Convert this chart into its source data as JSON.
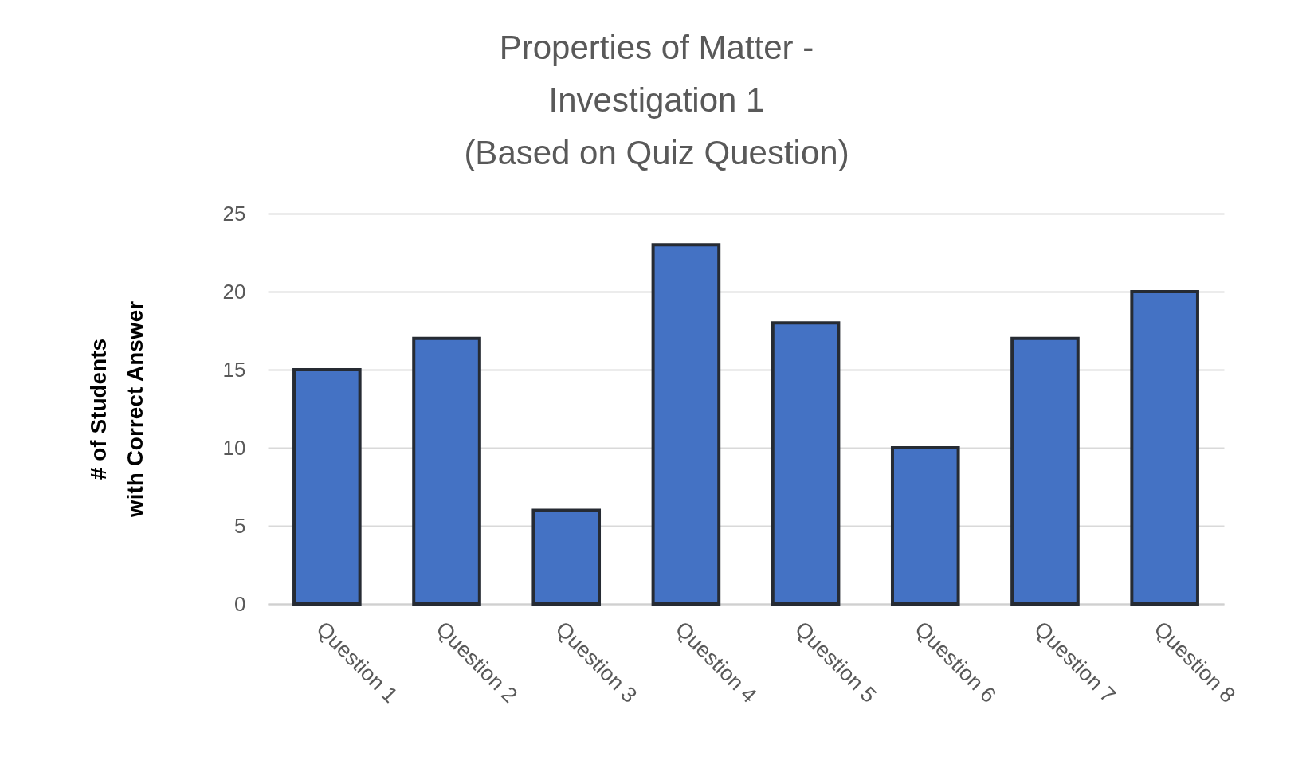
{
  "chart_data": {
    "type": "bar",
    "title": "Properties of Matter -\nInvestigation 1\n(Based on Quiz Question)",
    "ylabel": "# of Students\nwith Correct Answer",
    "categories": [
      "Question 1",
      "Question 2",
      "Question 3",
      "Question 4",
      "Question 5",
      "Question 6",
      "Question 7",
      "Question 8"
    ],
    "values": [
      15,
      17,
      6,
      23,
      18,
      10,
      17,
      20
    ],
    "color": "#4472c4",
    "ylim": [
      0,
      25
    ],
    "yticks": [
      0,
      5,
      10,
      15,
      20,
      25
    ],
    "grid": "y"
  }
}
